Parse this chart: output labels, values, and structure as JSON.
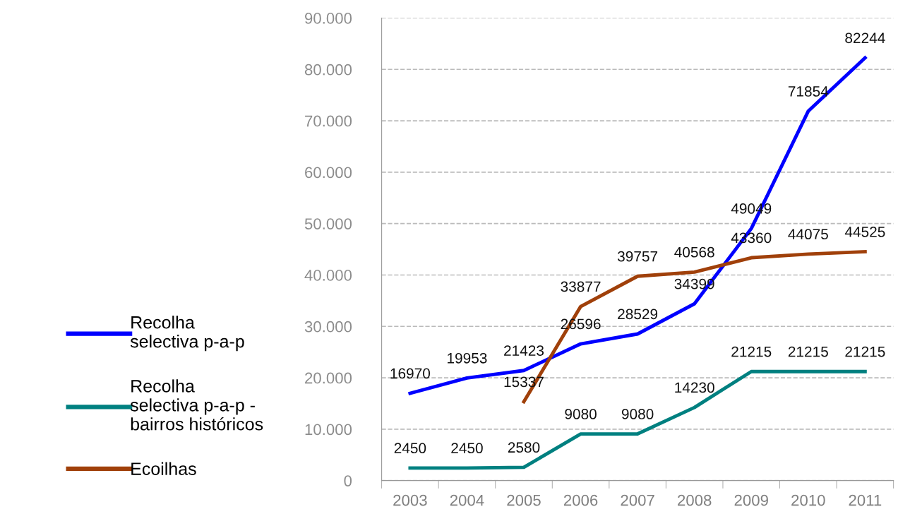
{
  "chart_data": {
    "type": "line",
    "categories": [
      "2003",
      "2004",
      "2005",
      "2006",
      "2007",
      "2008",
      "2009",
      "2010",
      "2011"
    ],
    "series": [
      {
        "name": "Recolha\nselectiva p-a-p",
        "color": "#0000ff",
        "values": [
          16970,
          19953,
          21423,
          26596,
          28529,
          34399,
          49049,
          71854,
          82244
        ]
      },
      {
        "name": "Recolha\nselectiva p-a-p -\nbairros históricos",
        "color": "#008080",
        "values": [
          2450,
          2450,
          2580,
          9080,
          9080,
          14230,
          21215,
          21215,
          21215
        ]
      },
      {
        "name": "Ecoilhas",
        "color": "#a0400a",
        "values": [
          null,
          null,
          15337,
          33877,
          39757,
          40568,
          43360,
          44075,
          44525
        ]
      }
    ],
    "ylim": [
      0,
      90000
    ],
    "yticks": [
      {
        "value": 0,
        "label": "0"
      },
      {
        "value": 10000,
        "label": "10.000"
      },
      {
        "value": 20000,
        "label": "20.000"
      },
      {
        "value": 30000,
        "label": "30.000"
      },
      {
        "value": 40000,
        "label": "40.000"
      },
      {
        "value": 50000,
        "label": "50.000"
      },
      {
        "value": 60000,
        "label": "60.000"
      },
      {
        "value": 70000,
        "label": "70.000"
      },
      {
        "value": 80000,
        "label": "80.000"
      },
      {
        "value": 90000,
        "label": "90.000"
      }
    ],
    "grid": "y",
    "legend": "left",
    "data_labels": true,
    "marker": "none",
    "line_style": "solid"
  }
}
